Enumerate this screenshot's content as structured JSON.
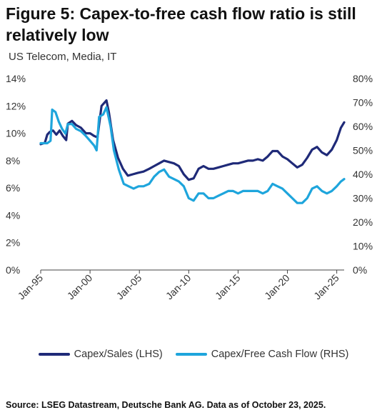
{
  "title": "Figure 5: Capex-to-free cash flow ratio is still relatively low",
  "subtitle": "US Telecom, Media, IT",
  "source": "Source: LSEG Datastream, Deutsche Bank AG. Data as of October 23, 2025.",
  "chart_data": {
    "type": "line",
    "x_type": "date",
    "x_range": [
      "1995-01",
      "2025-10"
    ],
    "x_ticks": [
      "Jan-95",
      "Jan-00",
      "Jan-05",
      "Jan-10",
      "Jan-15",
      "Jan-20",
      "Jan-25"
    ],
    "y_left": {
      "ticks": [
        "0%",
        "2%",
        "4%",
        "6%",
        "8%",
        "10%",
        "12%",
        "14%"
      ],
      "range": [
        0,
        14
      ]
    },
    "y_right": {
      "ticks": [
        "0%",
        "10%",
        "20%",
        "30%",
        "40%",
        "50%",
        "60%",
        "70%",
        "80%"
      ],
      "range": [
        0,
        80
      ]
    },
    "grid": false,
    "legend_position": "bottom",
    "series": [
      {
        "name": "Capex/Sales (LHS)",
        "axis": "left",
        "color": "#1f2a78",
        "points": [
          [
            "1995-01",
            9.2
          ],
          [
            "1995-06",
            9.3
          ],
          [
            "1995-09",
            9.9
          ],
          [
            "1995-12",
            10.1
          ],
          [
            "1996-04",
            10.2
          ],
          [
            "1996-08",
            9.9
          ],
          [
            "1996-12",
            10.2
          ],
          [
            "1997-04",
            9.8
          ],
          [
            "1997-08",
            9.5
          ],
          [
            "1997-10",
            10.7
          ],
          [
            "1998-03",
            10.9
          ],
          [
            "1998-08",
            10.6
          ],
          [
            "1999-02",
            10.4
          ],
          [
            "1999-08",
            10.0
          ],
          [
            "2000-01",
            10.0
          ],
          [
            "2000-06",
            9.8
          ],
          [
            "2000-10",
            9.7
          ],
          [
            "2001-03",
            12.0
          ],
          [
            "2001-09",
            12.4
          ],
          [
            "2001-12",
            11.5
          ],
          [
            "2002-05",
            9.5
          ],
          [
            "2002-11",
            8.2
          ],
          [
            "2003-05",
            7.4
          ],
          [
            "2003-11",
            6.9
          ],
          [
            "2004-05",
            7.0
          ],
          [
            "2004-11",
            7.1
          ],
          [
            "2005-06",
            7.2
          ],
          [
            "2006-01",
            7.4
          ],
          [
            "2006-07",
            7.6
          ],
          [
            "2007-01",
            7.8
          ],
          [
            "2007-07",
            8.0
          ],
          [
            "2008-01",
            7.9
          ],
          [
            "2008-07",
            7.8
          ],
          [
            "2009-01",
            7.6
          ],
          [
            "2009-07",
            7.0
          ],
          [
            "2010-01",
            6.6
          ],
          [
            "2010-07",
            6.7
          ],
          [
            "2011-01",
            7.4
          ],
          [
            "2011-07",
            7.6
          ],
          [
            "2012-01",
            7.4
          ],
          [
            "2012-07",
            7.4
          ],
          [
            "2013-01",
            7.5
          ],
          [
            "2013-07",
            7.6
          ],
          [
            "2014-01",
            7.7
          ],
          [
            "2014-07",
            7.8
          ],
          [
            "2015-01",
            7.8
          ],
          [
            "2015-07",
            7.9
          ],
          [
            "2016-01",
            8.0
          ],
          [
            "2016-07",
            8.0
          ],
          [
            "2017-01",
            8.1
          ],
          [
            "2017-07",
            8.0
          ],
          [
            "2018-01",
            8.3
          ],
          [
            "2018-07",
            8.7
          ],
          [
            "2019-01",
            8.7
          ],
          [
            "2019-07",
            8.3
          ],
          [
            "2020-01",
            8.1
          ],
          [
            "2020-07",
            7.8
          ],
          [
            "2021-01",
            7.5
          ],
          [
            "2021-07",
            7.7
          ],
          [
            "2022-01",
            8.2
          ],
          [
            "2022-07",
            8.8
          ],
          [
            "2023-01",
            9.0
          ],
          [
            "2023-07",
            8.6
          ],
          [
            "2024-01",
            8.4
          ],
          [
            "2024-07",
            8.8
          ],
          [
            "2025-01",
            9.5
          ],
          [
            "2025-06",
            10.4
          ],
          [
            "2025-10",
            10.8
          ]
        ]
      },
      {
        "name": "Capex/Free Cash Flow (RHS)",
        "axis": "right",
        "color": "#1ea5dc",
        "points": [
          [
            "1995-01",
            53
          ],
          [
            "1995-09",
            53
          ],
          [
            "1996-01",
            54
          ],
          [
            "1996-03",
            67
          ],
          [
            "1996-07",
            66
          ],
          [
            "1996-11",
            62
          ],
          [
            "1997-03",
            59
          ],
          [
            "1997-07",
            57
          ],
          [
            "1997-10",
            61
          ],
          [
            "1998-03",
            61
          ],
          [
            "1998-08",
            59
          ],
          [
            "1999-02",
            58
          ],
          [
            "1999-08",
            56
          ],
          [
            "2000-01",
            54
          ],
          [
            "2000-06",
            52
          ],
          [
            "2000-09",
            50
          ],
          [
            "2000-12",
            64
          ],
          [
            "2001-05",
            65
          ],
          [
            "2001-09",
            68
          ],
          [
            "2002-02",
            60
          ],
          [
            "2002-06",
            50
          ],
          [
            "2002-12",
            42
          ],
          [
            "2003-06",
            36
          ],
          [
            "2003-12",
            35
          ],
          [
            "2004-06",
            34
          ],
          [
            "2004-12",
            35
          ],
          [
            "2005-06",
            35
          ],
          [
            "2006-01",
            36
          ],
          [
            "2006-07",
            39
          ],
          [
            "2007-01",
            41
          ],
          [
            "2007-07",
            42
          ],
          [
            "2008-01",
            39
          ],
          [
            "2008-07",
            38
          ],
          [
            "2009-01",
            37
          ],
          [
            "2009-07",
            35
          ],
          [
            "2010-01",
            30
          ],
          [
            "2010-07",
            29
          ],
          [
            "2011-01",
            32
          ],
          [
            "2011-07",
            32
          ],
          [
            "2012-01",
            30
          ],
          [
            "2012-07",
            30
          ],
          [
            "2013-01",
            31
          ],
          [
            "2013-07",
            32
          ],
          [
            "2014-01",
            33
          ],
          [
            "2014-07",
            33
          ],
          [
            "2015-01",
            32
          ],
          [
            "2015-07",
            33
          ],
          [
            "2016-01",
            33
          ],
          [
            "2016-07",
            33
          ],
          [
            "2017-01",
            33
          ],
          [
            "2017-07",
            32
          ],
          [
            "2018-01",
            33
          ],
          [
            "2018-07",
            36
          ],
          [
            "2019-01",
            35
          ],
          [
            "2019-07",
            34
          ],
          [
            "2020-01",
            32
          ],
          [
            "2020-07",
            30
          ],
          [
            "2021-01",
            28
          ],
          [
            "2021-07",
            28
          ],
          [
            "2022-01",
            30
          ],
          [
            "2022-07",
            34
          ],
          [
            "2023-01",
            35
          ],
          [
            "2023-07",
            33
          ],
          [
            "2024-01",
            32
          ],
          [
            "2024-07",
            33
          ],
          [
            "2025-01",
            35
          ],
          [
            "2025-06",
            37
          ],
          [
            "2025-10",
            38
          ]
        ]
      }
    ]
  }
}
